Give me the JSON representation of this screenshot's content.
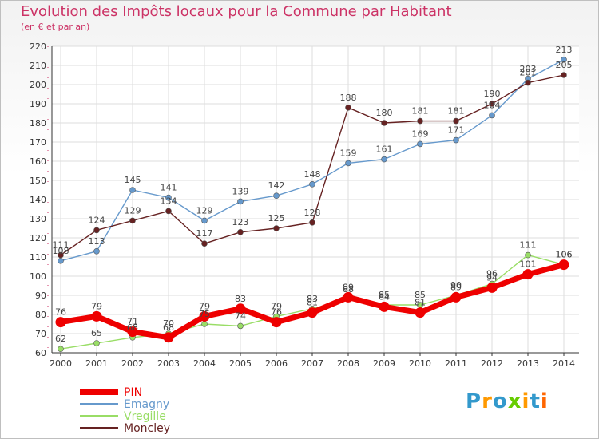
{
  "title": "Evolution des Impôts locaux pour la Commune par Habitant",
  "subtitle": "(en € et par an)",
  "logo": {
    "text": "Proxiti",
    "colors": [
      "#3399cc",
      "#ff9900",
      "#3399cc",
      "#66cc00",
      "#ff9900",
      "#3399cc",
      "#ff6600"
    ]
  },
  "chart_data": {
    "type": "line",
    "x": [
      2000,
      2001,
      2002,
      2003,
      2004,
      2005,
      2006,
      2007,
      2008,
      2009,
      2010,
      2011,
      2012,
      2013,
      2014
    ],
    "ylim": [
      60,
      220
    ],
    "yticks": [
      60,
      70,
      80,
      90,
      100,
      110,
      120,
      130,
      140,
      150,
      160,
      170,
      180,
      190,
      200,
      210,
      220
    ],
    "grid": true,
    "legend_position": "bottom-left",
    "series": [
      {
        "name": "PIN",
        "color": "#ee0000",
        "values": [
          76,
          79,
          71,
          68,
          79,
          83,
          76,
          81,
          89,
          84,
          81,
          89,
          94,
          101,
          106
        ]
      },
      {
        "name": "Emagny",
        "color": "#6699cc",
        "values": [
          108,
          113,
          145,
          141,
          129,
          139,
          142,
          148,
          159,
          161,
          169,
          171,
          184,
          203,
          213
        ]
      },
      {
        "name": "Vregille",
        "color": "#99dd66",
        "values": [
          62,
          65,
          68,
          70,
          75,
          74,
          79,
          83,
          88,
          85,
          85,
          90,
          96,
          111,
          106
        ]
      },
      {
        "name": "Moncley",
        "color": "#662222",
        "values": [
          111,
          124,
          129,
          134,
          117,
          123,
          125,
          128,
          188,
          180,
          181,
          181,
          190,
          201,
          205
        ]
      }
    ]
  }
}
